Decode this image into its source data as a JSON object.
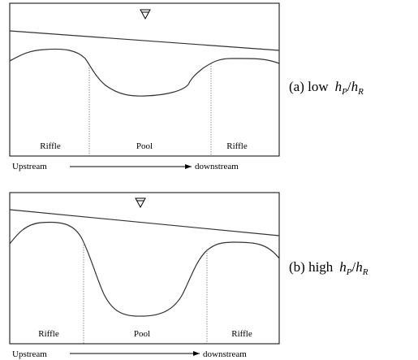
{
  "panels": [
    {
      "labels": [
        "Riffle",
        "Pool",
        "Riffle"
      ],
      "upstream": "Upstream",
      "downstream": "downstream",
      "caption": {
        "prefix": "(a) low",
        "h1": "h",
        "s1": "P",
        "slash": "/",
        "h2": "h",
        "s2": "R"
      }
    },
    {
      "labels": [
        "Riffle",
        "Pool",
        "Riffle"
      ],
      "upstream": "Upstream",
      "downstream": "downstream",
      "caption": {
        "prefix": "(b) high",
        "h1": "h",
        "s1": "P",
        "slash": "/",
        "h2": "h",
        "s2": "R"
      }
    }
  ]
}
